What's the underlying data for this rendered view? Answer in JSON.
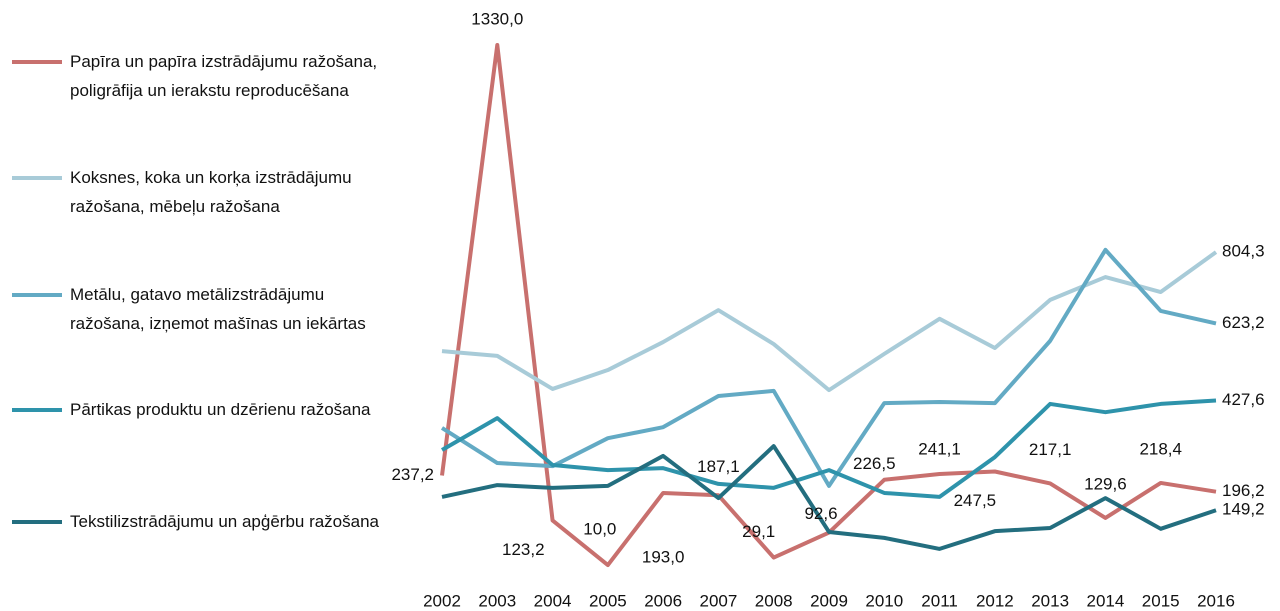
{
  "chart_data": {
    "type": "line",
    "x": [
      "2002",
      "2003",
      "2004",
      "2005",
      "2006",
      "2007",
      "2008",
      "2009",
      "2010",
      "2011",
      "2012",
      "2013",
      "2014",
      "2015",
      "2016"
    ],
    "ylim": [
      0,
      1330
    ],
    "series": [
      {
        "name": "Papīra un papīra izstrādājumu ražošana, poligrāfija un ierakstu reproducēšana",
        "color": "#c8706e",
        "values": [
          237.2,
          1330.0,
          123.2,
          10.0,
          193.0,
          187.1,
          29.1,
          92.6,
          226.5,
          241.1,
          247.5,
          217.1,
          129.6,
          218.4,
          196.2
        ],
        "value_labels": [
          "237,2",
          "1330,0",
          "123,2",
          "10,0",
          "193,0",
          "187,1",
          "29,1",
          "92,6",
          "226,5",
          "241,1",
          "247,5",
          "217,1",
          "129,6",
          "218,4",
          "196,2"
        ]
      },
      {
        "name": "Koksnes, koka un korķa izstrādājumu ražošana, mēbeļu ražošana",
        "color": "#a8cbd8",
        "values": [
          553,
          541,
          457,
          505,
          576,
          657,
          571,
          454,
          546,
          635,
          561,
          683,
          741,
          703,
          804.3
        ],
        "value_labels": [
          null,
          null,
          null,
          null,
          null,
          null,
          null,
          null,
          null,
          null,
          null,
          null,
          null,
          null,
          "804,3"
        ]
      },
      {
        "name": "Metālu, gatavo metālizstrādājumu ražošana, izņemot mašīnas un iekārtas",
        "color": "#63aac4",
        "values": [
          358,
          269,
          261,
          332,
          360,
          439,
          452,
          211,
          421,
          424,
          421,
          579,
          810,
          655,
          623.2
        ],
        "value_labels": [
          null,
          null,
          null,
          null,
          null,
          null,
          null,
          null,
          null,
          null,
          null,
          null,
          null,
          null,
          "623,2"
        ]
      },
      {
        "name": "Pārtikas produktu un dzērienu ražošana",
        "color": "#2e93ab",
        "values": [
          302,
          383,
          264,
          251,
          256,
          216,
          206,
          251,
          193,
          183,
          284,
          419,
          398,
          419,
          427.6
        ],
        "value_labels": [
          null,
          null,
          null,
          null,
          null,
          null,
          null,
          null,
          null,
          null,
          null,
          null,
          null,
          null,
          "427,6"
        ]
      },
      {
        "name": "Tekstilizstrādājumu un apģērbu ražošana",
        "color": "#236e7f",
        "values": [
          183,
          213,
          206,
          211,
          287,
          180,
          312,
          94,
          79,
          51,
          96,
          104,
          180,
          102,
          149.2
        ],
        "value_labels": [
          null,
          null,
          null,
          null,
          null,
          null,
          null,
          null,
          null,
          null,
          null,
          null,
          null,
          null,
          "149,2"
        ]
      }
    ]
  }
}
